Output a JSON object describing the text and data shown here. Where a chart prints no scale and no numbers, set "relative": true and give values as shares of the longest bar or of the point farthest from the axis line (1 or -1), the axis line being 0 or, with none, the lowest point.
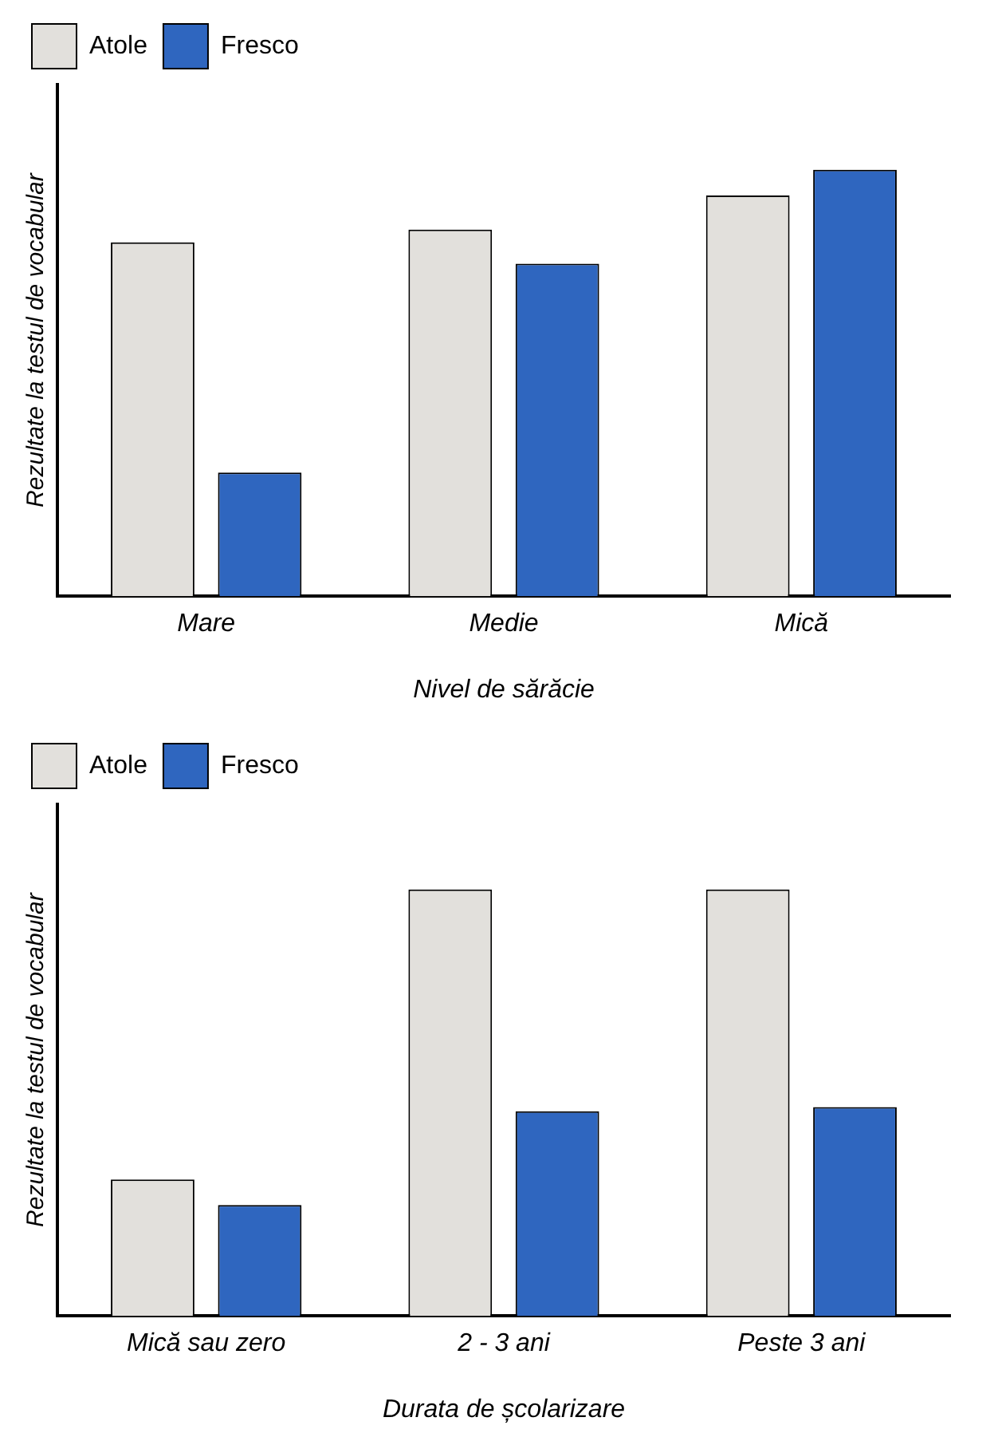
{
  "chart_data": [
    {
      "type": "bar",
      "xlabel": "Nivel de sărăcie",
      "ylabel": "Rezultate la testul de vocabular",
      "categories": [
        "Mare",
        "Medie",
        "Mică"
      ],
      "relative": true,
      "legend": "top left",
      "grid": false,
      "series": [
        {
          "name": "Atole",
          "color": "#e2e0dc",
          "values": [
            0.83,
            0.86,
            0.94
          ]
        },
        {
          "name": "Fresco",
          "color": "#2f66bf",
          "values": [
            0.29,
            0.78,
            1
          ]
        }
      ]
    },
    {
      "type": "bar",
      "xlabel": "Durata de școlarizare",
      "ylabel": "Rezultate la testul de vocabular",
      "categories": [
        "Mică sau zero",
        "2 - 3 ani",
        "Peste 3 ani"
      ],
      "relative": true,
      "legend": "top left",
      "grid": false,
      "series": [
        {
          "name": "Atole",
          "color": "#e2e0dc",
          "values": [
            0.32,
            1,
            1
          ]
        },
        {
          "name": "Fresco",
          "color": "#2f66bf",
          "values": [
            0.26,
            0.48,
            0.49
          ]
        }
      ]
    }
  ]
}
